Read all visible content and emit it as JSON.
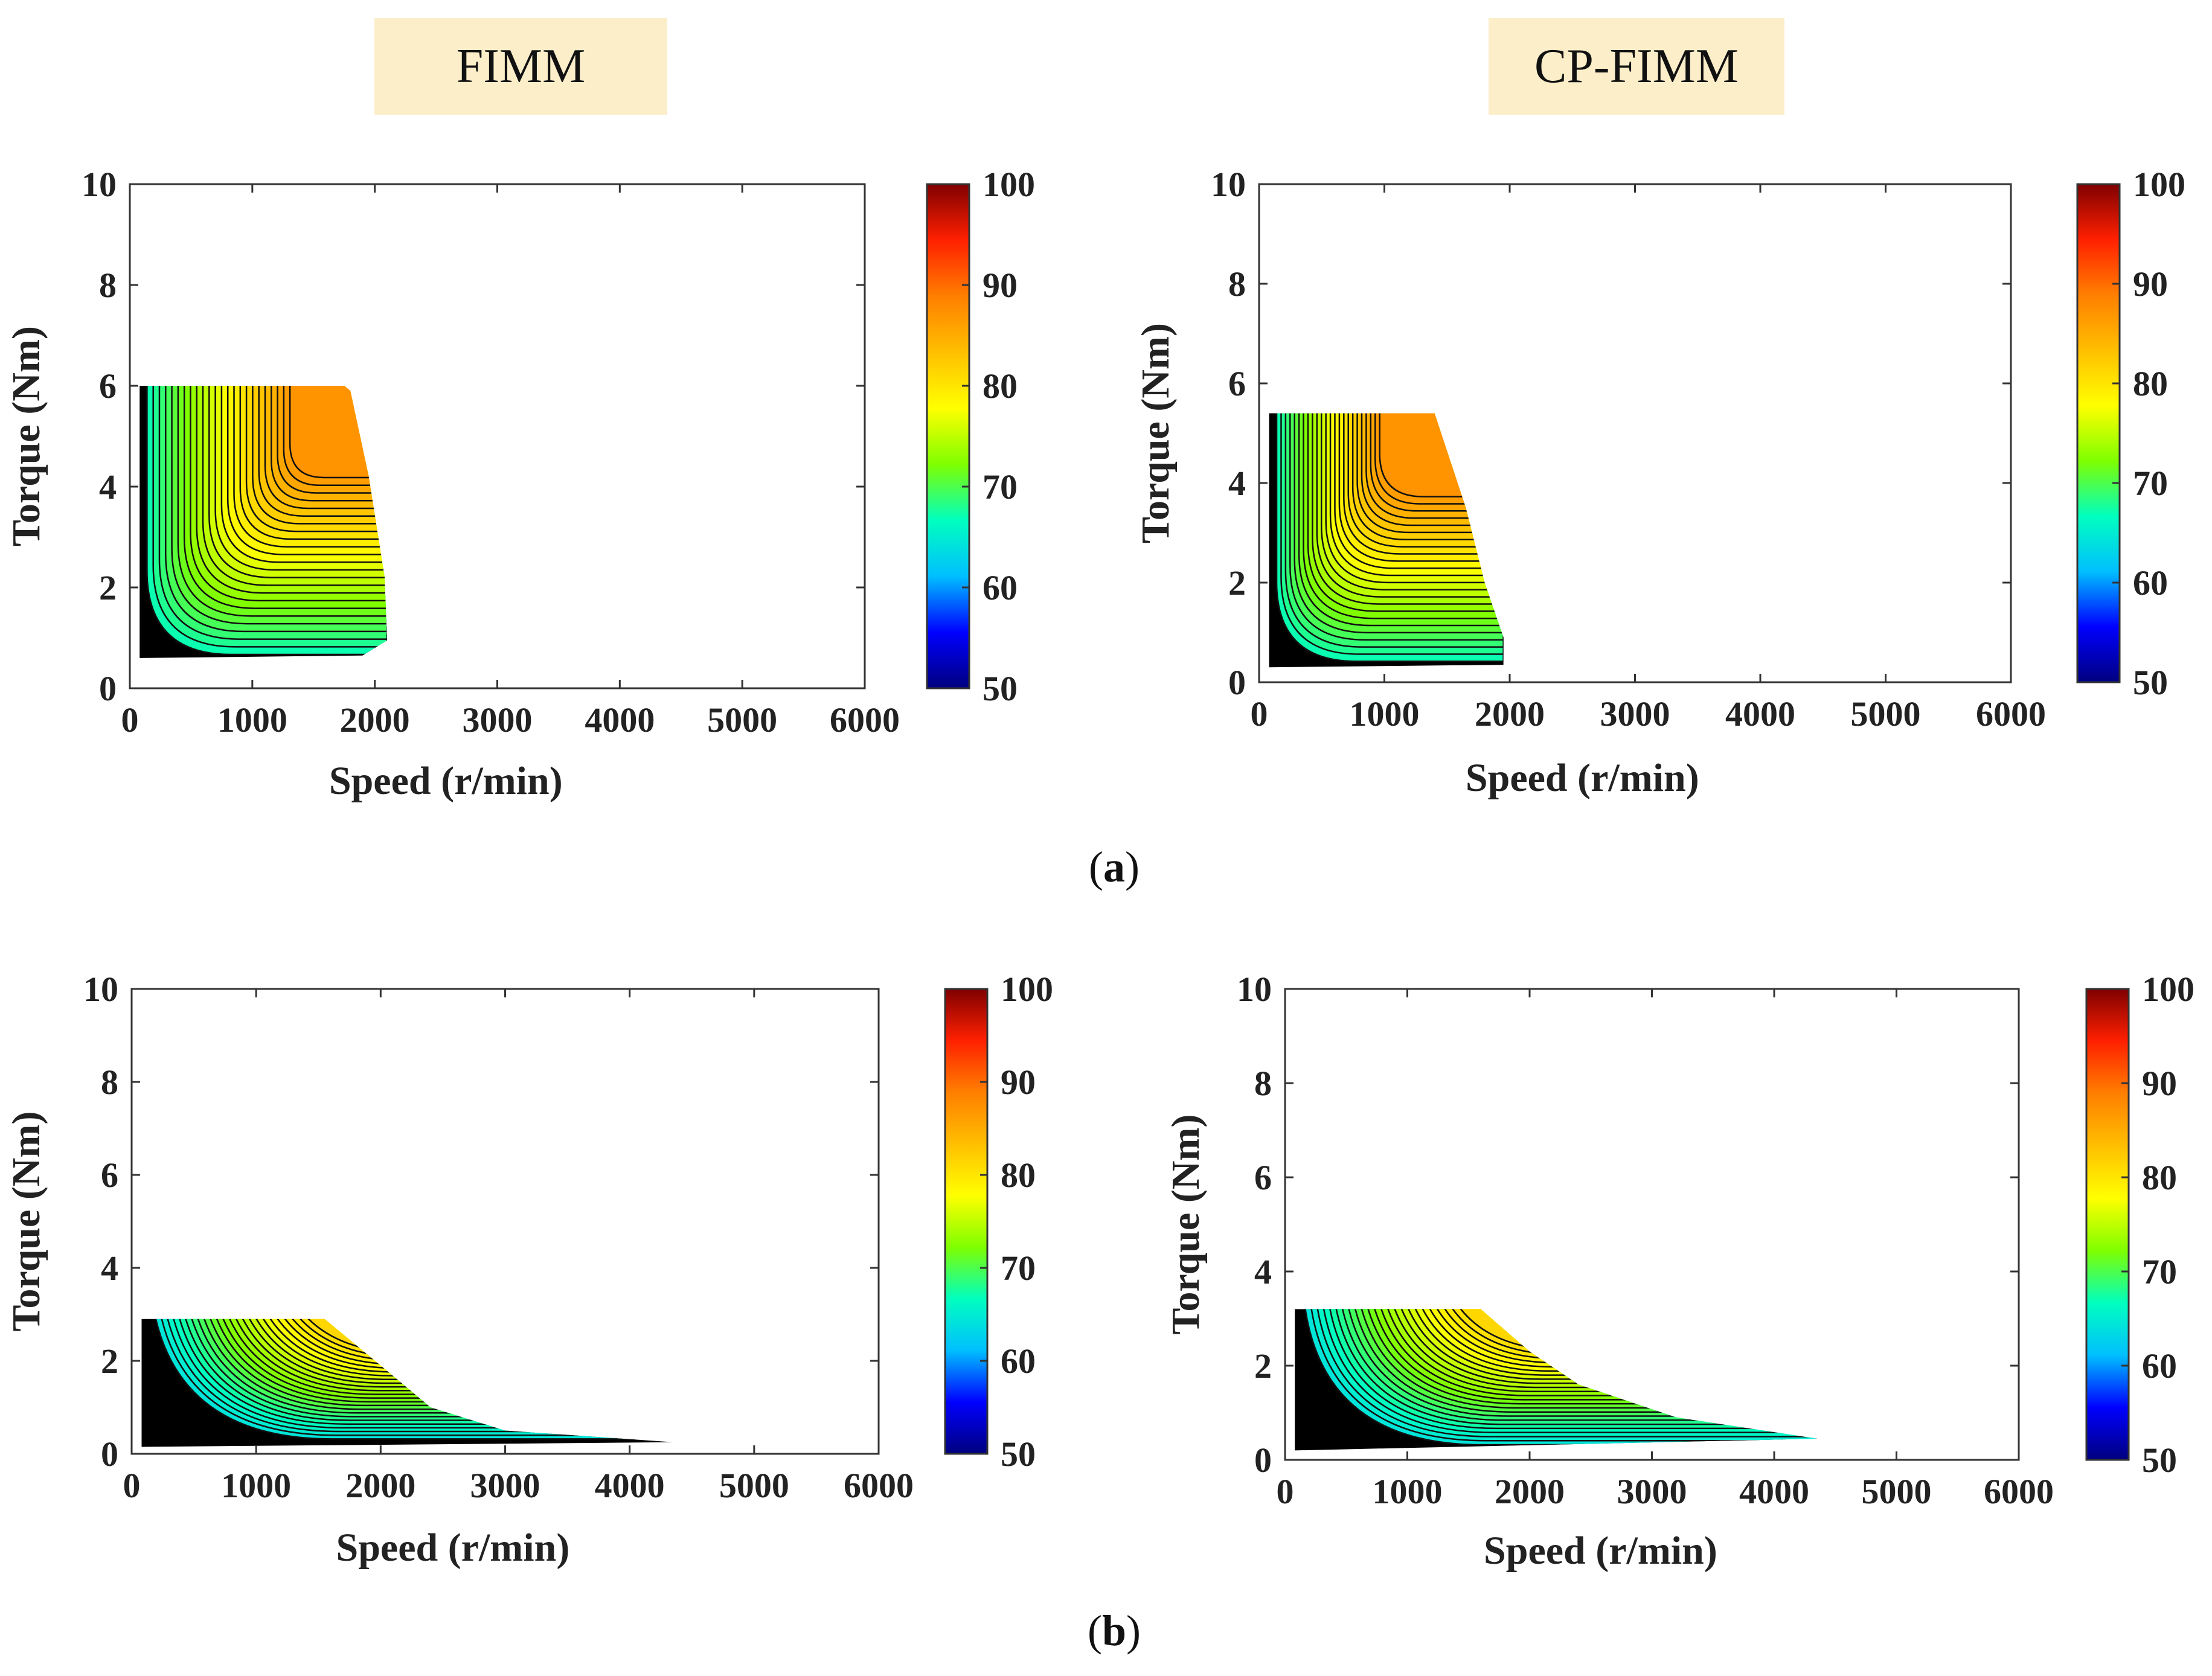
{
  "headers": {
    "left": "FIMM",
    "right": "CP-FIMM"
  },
  "panel_labels": {
    "a": {
      "open": "(",
      "letter": "a",
      "close": ")"
    },
    "b": {
      "open": "(",
      "letter": "b",
      "close": ")"
    }
  },
  "colormap": {
    "stops": [
      "#00007f",
      "#0000ff",
      "#00bfff",
      "#00ffbf",
      "#7fff00",
      "#ffff00",
      "#ffbf00",
      "#ff7f00",
      "#ff2000",
      "#7f0000"
    ]
  },
  "chart_data": [
    {
      "id": "a-fimm",
      "type": "heatmap",
      "title": "FIMM",
      "xlabel": "Speed (r/min)",
      "ylabel": "Torque (Nm)",
      "xlim": [
        0,
        6000
      ],
      "ylim": [
        0,
        10
      ],
      "xticks": [
        0,
        1000,
        2000,
        3000,
        4000,
        5000,
        6000
      ],
      "yticks": [
        0,
        2,
        4,
        6,
        8,
        10
      ],
      "colorbar": {
        "range": [
          50,
          100
        ],
        "ticks": [
          50,
          60,
          70,
          80,
          90,
          100
        ]
      },
      "region": {
        "min_speed": 80,
        "max_torque": 6.0,
        "min_torque": 0.55,
        "outline": [
          [
            80,
            0.6
          ],
          [
            1900,
            0.65
          ],
          [
            2100,
            0.95
          ],
          [
            2080,
            2.2
          ],
          [
            1950,
            4.2
          ],
          [
            1800,
            5.9
          ],
          [
            1750,
            6.0
          ],
          [
            80,
            6.0
          ]
        ]
      },
      "efficiency_peak": 88,
      "peak_location": [
        1500,
        5.0
      ]
    },
    {
      "id": "a-cpfimm",
      "type": "heatmap",
      "title": "CP-FIMM",
      "xlabel": "Speed (r/min)",
      "ylabel": "Torque (Nm)",
      "xlim": [
        0,
        6000
      ],
      "ylim": [
        0,
        10
      ],
      "xticks": [
        0,
        1000,
        2000,
        3000,
        4000,
        5000,
        6000
      ],
      "yticks": [
        0,
        2,
        4,
        6,
        8,
        10
      ],
      "colorbar": {
        "range": [
          50,
          100
        ],
        "ticks": [
          50,
          60,
          70,
          80,
          90,
          100
        ]
      },
      "region": {
        "min_speed": 80,
        "max_torque": 5.4,
        "min_torque": 0.3,
        "outline": [
          [
            80,
            0.3
          ],
          [
            1950,
            0.35
          ],
          [
            1950,
            0.9
          ],
          [
            1800,
            2.0
          ],
          [
            1650,
            3.5
          ],
          [
            1400,
            5.4
          ],
          [
            80,
            5.4
          ]
        ]
      },
      "efficiency_peak": 88,
      "peak_location": [
        1100,
        4.5
      ]
    },
    {
      "id": "b-fimm",
      "type": "heatmap",
      "title": "FIMM",
      "xlabel": "Speed (r/min)",
      "ylabel": "Torque (Nm)",
      "xlim": [
        0,
        6000
      ],
      "ylim": [
        0,
        10
      ],
      "xticks": [
        0,
        1000,
        2000,
        3000,
        4000,
        5000,
        6000
      ],
      "yticks": [
        0,
        2,
        4,
        6,
        8,
        10
      ],
      "colorbar": {
        "range": [
          50,
          100
        ],
        "ticks": [
          50,
          60,
          70,
          80,
          90,
          100
        ]
      },
      "region": {
        "min_speed": 80,
        "max_torque": 2.9,
        "min_torque": 0.2,
        "outline": [
          [
            80,
            0.15
          ],
          [
            4350,
            0.25
          ],
          [
            3000,
            0.5
          ],
          [
            2400,
            1.0
          ],
          [
            2000,
            1.9
          ],
          [
            1550,
            2.9
          ],
          [
            80,
            2.9
          ]
        ]
      },
      "efficiency_peak": 82,
      "peak_location": [
        1300,
        2.6
      ]
    },
    {
      "id": "b-cpfimm",
      "type": "heatmap",
      "title": "CP-FIMM",
      "xlabel": "Speed (r/min)",
      "ylabel": "Torque (Nm)",
      "xlim": [
        0,
        6000
      ],
      "ylim": [
        0,
        10
      ],
      "xticks": [
        0,
        1000,
        2000,
        3000,
        4000,
        5000,
        6000
      ],
      "yticks": [
        0,
        2,
        4,
        6,
        8,
        10
      ],
      "colorbar": {
        "range": [
          50,
          100
        ],
        "ticks": [
          50,
          60,
          70,
          80,
          90,
          100
        ]
      },
      "region": {
        "min_speed": 80,
        "max_torque": 3.2,
        "min_torque": 0.2,
        "outline": [
          [
            80,
            0.2
          ],
          [
            4350,
            0.45
          ],
          [
            3200,
            0.9
          ],
          [
            2400,
            1.6
          ],
          [
            2000,
            2.3
          ],
          [
            1600,
            3.2
          ],
          [
            80,
            3.2
          ]
        ]
      },
      "efficiency_peak": 82,
      "peak_location": [
        1400,
        2.8
      ]
    }
  ]
}
